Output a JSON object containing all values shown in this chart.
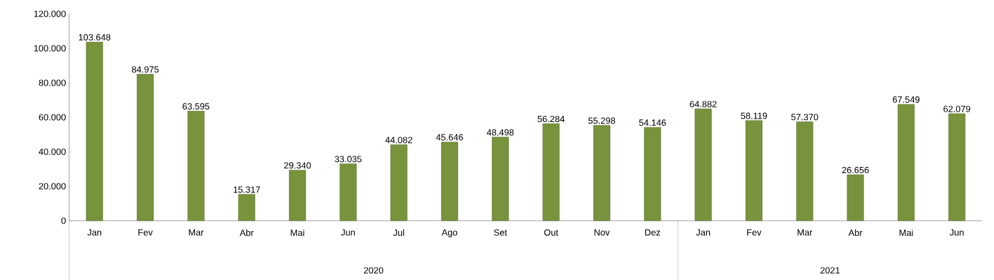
{
  "chart_data": {
    "type": "bar",
    "categories": [
      "Jan",
      "Fev",
      "Mar",
      "Abr",
      "Mai",
      "Jun",
      "Jul",
      "Ago",
      "Set",
      "Out",
      "Nov",
      "Dez",
      "Jan",
      "Fev",
      "Mar",
      "Abr",
      "Mai",
      "Jun"
    ],
    "values": [
      103648,
      84975,
      63595,
      15317,
      29340,
      33035,
      44082,
      45646,
      48498,
      56284,
      55298,
      54146,
      64882,
      58119,
      57370,
      26656,
      67549,
      62079
    ],
    "value_labels": [
      "103.648",
      "84.975",
      "63.595",
      "15.317",
      "29.340",
      "33.035",
      "44.082",
      "45.646",
      "48.498",
      "56.284",
      "55.298",
      "54.146",
      "64.882",
      "58.119",
      "57.370",
      "26.656",
      "67.549",
      "62.079"
    ],
    "color": "#77933c",
    "ylim": [
      0,
      120000
    ],
    "yticks": [
      {
        "value": 0,
        "label": "0"
      },
      {
        "value": 20000,
        "label": "20.000"
      },
      {
        "value": 40000,
        "label": "40.000"
      },
      {
        "value": 60000,
        "label": "60.000"
      },
      {
        "value": 80000,
        "label": "80.000"
      },
      {
        "value": 100000,
        "label": "100.000"
      },
      {
        "value": 120000,
        "label": "120.000"
      }
    ],
    "annotations": [
      "2020",
      "2021"
    ],
    "grid": false
  }
}
